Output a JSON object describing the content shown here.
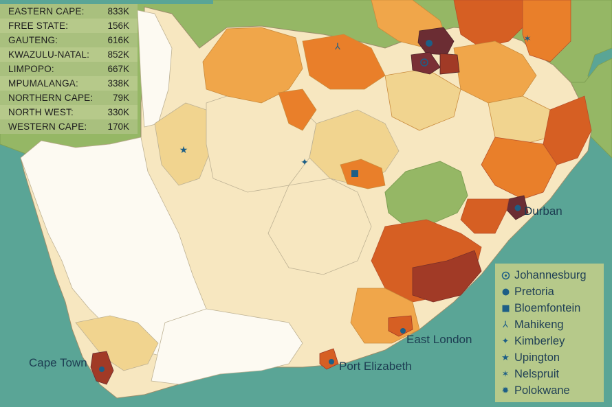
{
  "province_stats": [
    {
      "name": "EASTERN CAPE:",
      "value": "833K"
    },
    {
      "name": "FREE STATE:",
      "value": "156K"
    },
    {
      "name": "GAUTENG:",
      "value": "616K"
    },
    {
      "name": "KWAZULU-NATAL:",
      "value": "852K"
    },
    {
      "name": "LIMPOPO:",
      "value": "667K"
    },
    {
      "name": "MPUMALANGA:",
      "value": "338K"
    },
    {
      "name": "NORTHERN CAPE:",
      "value": "79K"
    },
    {
      "name": "NORTH WEST:",
      "value": "330K"
    },
    {
      "name": "WESTERN CAPE:",
      "value": "170K"
    }
  ],
  "legend": [
    {
      "label": "Johannesburg",
      "symbol": "circle-dot-icon"
    },
    {
      "label": "Pretoria",
      "symbol": "circle-icon"
    },
    {
      "label": "Bloemfontein",
      "symbol": "square-icon"
    },
    {
      "label": "Mahikeng",
      "symbol": "tri-arrow-icon"
    },
    {
      "label": "Kimberley",
      "symbol": "four-point-star-icon"
    },
    {
      "label": "Upington",
      "symbol": "five-point-star-icon"
    },
    {
      "label": "Nelspruit",
      "symbol": "six-point-star-icon"
    },
    {
      "label": "Polokwane",
      "symbol": "burst-icon"
    }
  ],
  "city_labels": {
    "durban": "Durban",
    "east_london": "East London",
    "port_elizabeth": "Port Elizabeth",
    "cape_town": "Cape Town"
  },
  "colors": {
    "ocean": "#5aa596",
    "land_neighbor": "#95b765",
    "class_0": "#fdfaf2",
    "class_1": "#f7e7c0",
    "class_2": "#f1d48f",
    "class_3": "#f0a64a",
    "class_4": "#e97f2a",
    "class_5": "#d65f23",
    "class_6": "#a13a26",
    "class_7": "#6b2d33",
    "border": "#9c8e6b",
    "marker": "#1d5e86"
  }
}
